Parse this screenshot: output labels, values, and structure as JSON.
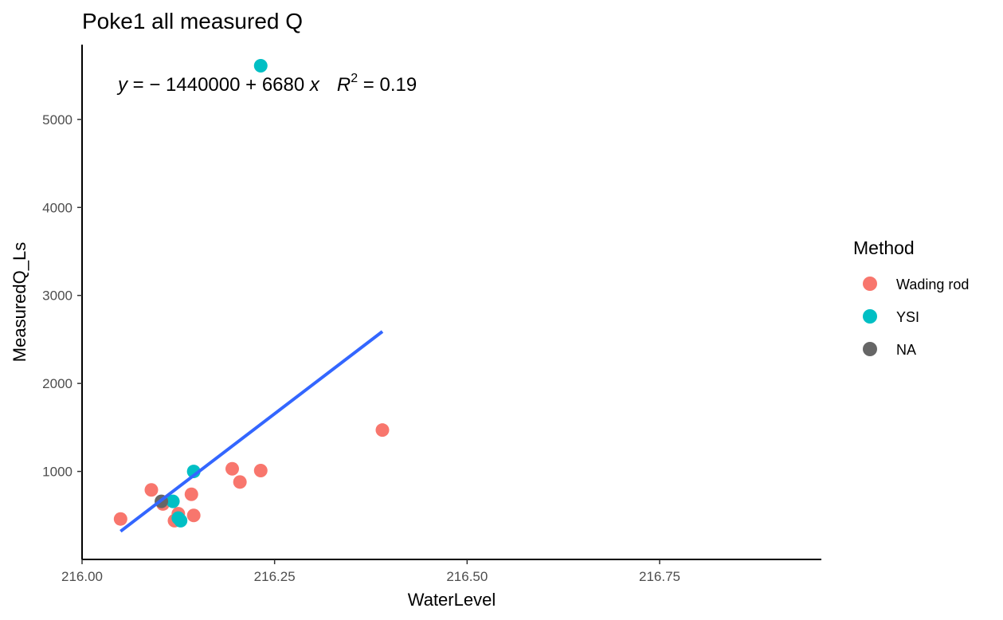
{
  "chart_data": {
    "type": "scatter",
    "title": "Poke1 all measured Q",
    "xlabel": "WaterLevel",
    "ylabel": "MeasuredQ_Ls",
    "xlim": [
      216.0,
      216.96
    ],
    "ylim": [
      0,
      5850
    ],
    "xticks": [
      "216.00",
      "216.25",
      "216.50",
      "216.75"
    ],
    "yticks": [
      "1000",
      "2000",
      "3000",
      "4000",
      "5000"
    ],
    "grid": false,
    "legend": {
      "title": "Method",
      "placement": "right",
      "entries": [
        {
          "label": "Wading rod",
          "color": "#F8766D"
        },
        {
          "label": "YSI",
          "color": "#00BFC4"
        },
        {
          "label": "NA",
          "color": "#666666"
        }
      ]
    },
    "annotation": {
      "y_sym": "y",
      "eq_text": " = − 1440000 + 6680 ",
      "x_sym": "x",
      "r_sym": "R",
      "r_sup": "2",
      "r_val": " = 0.19"
    },
    "fit_line": {
      "color": "#3366FF",
      "x": [
        216.05,
        216.39
      ],
      "y": [
        320,
        2590
      ]
    },
    "series": [
      {
        "name": "Wading rod",
        "color": "#F8766D",
        "x": [
          216.05,
          216.09,
          216.105,
          216.12,
          216.125,
          216.142,
          216.145,
          216.195,
          216.205,
          216.232,
          216.39
        ],
        "y": [
          460,
          790,
          630,
          440,
          520,
          740,
          500,
          1030,
          880,
          1010,
          1470
        ]
      },
      {
        "name": "YSI",
        "color": "#00BFC4",
        "x": [
          216.118,
          216.125,
          216.128,
          216.145,
          216.232
        ],
        "y": [
          660,
          470,
          440,
          1000,
          5610
        ]
      },
      {
        "name": "NA",
        "color": "#666666",
        "x": [
          216.103
        ],
        "y": [
          660
        ]
      }
    ]
  }
}
